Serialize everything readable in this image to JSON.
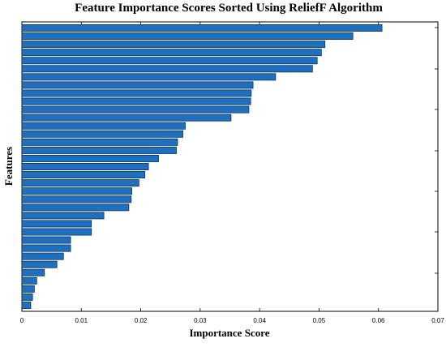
{
  "chart_data": {
    "type": "bar",
    "orientation": "horizontal",
    "title": "Feature Importance Scores Sorted Using ReliefF Algorithm",
    "xlabel": "Importance Score",
    "ylabel": "Features",
    "xlim": [
      0,
      0.07
    ],
    "xticks": [
      "0",
      "0.01",
      "0.02",
      "0.03",
      "0.04",
      "0.05",
      "0.06",
      "0.07"
    ],
    "grid": false,
    "bar_color": "#1f6fbf",
    "bar_edge_color": "#0a2a4a",
    "values": [
      0.0606,
      0.0557,
      0.051,
      0.0504,
      0.0497,
      0.0489,
      0.0427,
      0.0389,
      0.0386,
      0.0385,
      0.0382,
      0.0352,
      0.0275,
      0.0271,
      0.0262,
      0.026,
      0.023,
      0.0213,
      0.0207,
      0.0197,
      0.0185,
      0.0184,
      0.018,
      0.0138,
      0.0117,
      0.0117,
      0.0082,
      0.0082,
      0.007,
      0.0059,
      0.0038,
      0.0025,
      0.0021,
      0.0018,
      0.0015
    ]
  }
}
